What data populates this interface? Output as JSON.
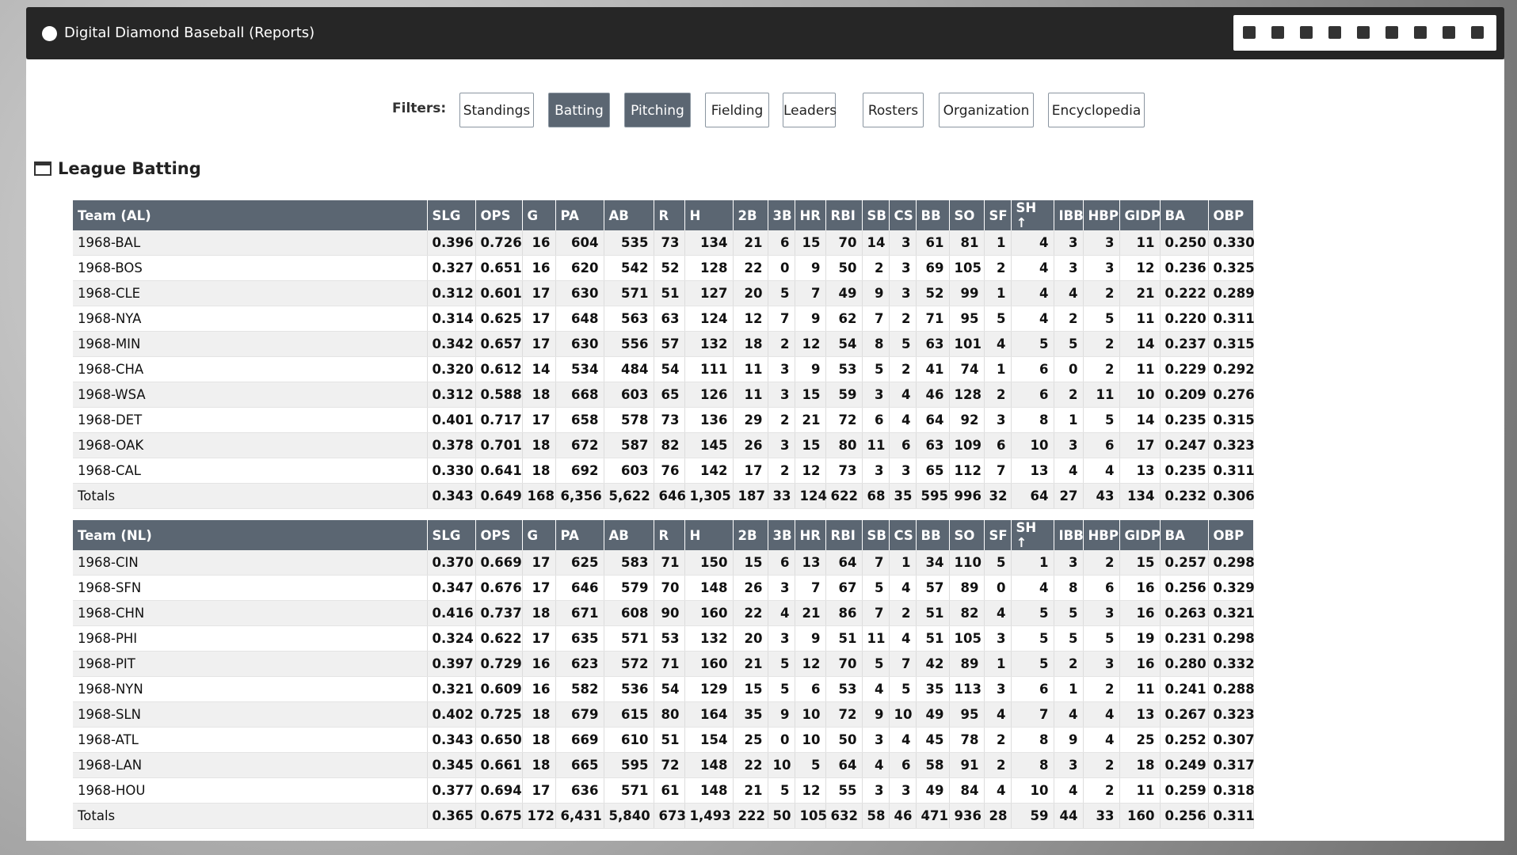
{
  "header": {
    "title": "Digital Diamond Baseball (Reports)"
  },
  "filters": {
    "label": "Filters:",
    "buttons": [
      {
        "label": "Standings",
        "active": false
      },
      {
        "label": "Batting",
        "active": true
      },
      {
        "label": "Pitching",
        "active": true
      },
      {
        "label": "Fielding",
        "active": false
      },
      {
        "label": "Leaders",
        "active": false
      },
      {
        "label": "Rosters",
        "active": false
      },
      {
        "label": "Organization",
        "active": false
      },
      {
        "label": "Encyclopedia",
        "active": false
      }
    ]
  },
  "section": {
    "title": "League Batting"
  },
  "tables": [
    {
      "columns": [
        "Team (AL)",
        "SLG",
        "OPS",
        "G",
        "PA",
        "AB",
        "R",
        "H",
        "2B",
        "3B",
        "HR",
        "RBI",
        "SB",
        "CS",
        "BB",
        "SO",
        "SF",
        "SH ↑",
        "IBB",
        "HBP",
        "GIDP",
        "BA",
        "OBP"
      ],
      "rows": [
        [
          "1968-BAL",
          "0.396",
          "0.726",
          "16",
          "604",
          "535",
          "73",
          "134",
          "21",
          "6",
          "15",
          "70",
          "14",
          "3",
          "61",
          "81",
          "1",
          "4",
          "3",
          "3",
          "11",
          "0.250",
          "0.330"
        ],
        [
          "1968-BOS",
          "0.327",
          "0.651",
          "16",
          "620",
          "542",
          "52",
          "128",
          "22",
          "0",
          "9",
          "50",
          "2",
          "3",
          "69",
          "105",
          "2",
          "4",
          "3",
          "3",
          "12",
          "0.236",
          "0.325"
        ],
        [
          "1968-CLE",
          "0.312",
          "0.601",
          "17",
          "630",
          "571",
          "51",
          "127",
          "20",
          "5",
          "7",
          "49",
          "9",
          "3",
          "52",
          "99",
          "1",
          "4",
          "4",
          "2",
          "21",
          "0.222",
          "0.289"
        ],
        [
          "1968-NYA",
          "0.314",
          "0.625",
          "17",
          "648",
          "563",
          "63",
          "124",
          "12",
          "7",
          "9",
          "62",
          "7",
          "2",
          "71",
          "95",
          "5",
          "4",
          "2",
          "5",
          "11",
          "0.220",
          "0.311"
        ],
        [
          "1968-MIN",
          "0.342",
          "0.657",
          "17",
          "630",
          "556",
          "57",
          "132",
          "18",
          "2",
          "12",
          "54",
          "8",
          "5",
          "63",
          "101",
          "4",
          "5",
          "5",
          "2",
          "14",
          "0.237",
          "0.315"
        ],
        [
          "1968-CHA",
          "0.320",
          "0.612",
          "14",
          "534",
          "484",
          "54",
          "111",
          "11",
          "3",
          "9",
          "53",
          "5",
          "2",
          "41",
          "74",
          "1",
          "6",
          "0",
          "2",
          "11",
          "0.229",
          "0.292"
        ],
        [
          "1968-WSA",
          "0.312",
          "0.588",
          "18",
          "668",
          "603",
          "65",
          "126",
          "11",
          "3",
          "15",
          "59",
          "3",
          "4",
          "46",
          "128",
          "2",
          "6",
          "2",
          "11",
          "10",
          "0.209",
          "0.276"
        ],
        [
          "1968-DET",
          "0.401",
          "0.717",
          "17",
          "658",
          "578",
          "73",
          "136",
          "29",
          "2",
          "21",
          "72",
          "6",
          "4",
          "64",
          "92",
          "3",
          "8",
          "1",
          "5",
          "14",
          "0.235",
          "0.315"
        ],
        [
          "1968-OAK",
          "0.378",
          "0.701",
          "18",
          "672",
          "587",
          "82",
          "145",
          "26",
          "3",
          "15",
          "80",
          "11",
          "6",
          "63",
          "109",
          "6",
          "10",
          "3",
          "6",
          "17",
          "0.247",
          "0.323"
        ],
        [
          "1968-CAL",
          "0.330",
          "0.641",
          "18",
          "692",
          "603",
          "76",
          "142",
          "17",
          "2",
          "12",
          "73",
          "3",
          "3",
          "65",
          "112",
          "7",
          "13",
          "4",
          "4",
          "13",
          "0.235",
          "0.311"
        ],
        [
          "Totals",
          "0.343",
          "0.649",
          "168",
          "6,356",
          "5,622",
          "646",
          "1,305",
          "187",
          "33",
          "124",
          "622",
          "68",
          "35",
          "595",
          "996",
          "32",
          "64",
          "27",
          "43",
          "134",
          "0.232",
          "0.306"
        ]
      ]
    },
    {
      "columns": [
        "Team (NL)",
        "SLG",
        "OPS",
        "G",
        "PA",
        "AB",
        "R",
        "H",
        "2B",
        "3B",
        "HR",
        "RBI",
        "SB",
        "CS",
        "BB",
        "SO",
        "SF",
        "SH ↑",
        "IBB",
        "HBP",
        "GIDP",
        "BA",
        "OBP"
      ],
      "rows": [
        [
          "1968-CIN",
          "0.370",
          "0.669",
          "17",
          "625",
          "583",
          "71",
          "150",
          "15",
          "6",
          "13",
          "64",
          "7",
          "1",
          "34",
          "110",
          "5",
          "1",
          "3",
          "2",
          "15",
          "0.257",
          "0.298"
        ],
        [
          "1968-SFN",
          "0.347",
          "0.676",
          "17",
          "646",
          "579",
          "70",
          "148",
          "26",
          "3",
          "7",
          "67",
          "5",
          "4",
          "57",
          "89",
          "0",
          "4",
          "8",
          "6",
          "16",
          "0.256",
          "0.329"
        ],
        [
          "1968-CHN",
          "0.416",
          "0.737",
          "18",
          "671",
          "608",
          "90",
          "160",
          "22",
          "4",
          "21",
          "86",
          "7",
          "2",
          "51",
          "82",
          "4",
          "5",
          "5",
          "3",
          "16",
          "0.263",
          "0.321"
        ],
        [
          "1968-PHI",
          "0.324",
          "0.622",
          "17",
          "635",
          "571",
          "53",
          "132",
          "20",
          "3",
          "9",
          "51",
          "11",
          "4",
          "51",
          "105",
          "3",
          "5",
          "5",
          "5",
          "19",
          "0.231",
          "0.298"
        ],
        [
          "1968-PIT",
          "0.397",
          "0.729",
          "16",
          "623",
          "572",
          "71",
          "160",
          "21",
          "5",
          "12",
          "70",
          "5",
          "7",
          "42",
          "89",
          "1",
          "5",
          "2",
          "3",
          "16",
          "0.280",
          "0.332"
        ],
        [
          "1968-NYN",
          "0.321",
          "0.609",
          "16",
          "582",
          "536",
          "54",
          "129",
          "15",
          "5",
          "6",
          "53",
          "4",
          "5",
          "35",
          "113",
          "3",
          "6",
          "1",
          "2",
          "11",
          "0.241",
          "0.288"
        ],
        [
          "1968-SLN",
          "0.402",
          "0.725",
          "18",
          "679",
          "615",
          "80",
          "164",
          "35",
          "9",
          "10",
          "72",
          "9",
          "10",
          "49",
          "95",
          "4",
          "7",
          "4",
          "4",
          "13",
          "0.267",
          "0.323"
        ],
        [
          "1968-ATL",
          "0.343",
          "0.650",
          "18",
          "669",
          "610",
          "51",
          "154",
          "25",
          "0",
          "10",
          "50",
          "3",
          "4",
          "45",
          "78",
          "2",
          "8",
          "9",
          "4",
          "25",
          "0.252",
          "0.307"
        ],
        [
          "1968-LAN",
          "0.345",
          "0.661",
          "18",
          "665",
          "595",
          "72",
          "148",
          "22",
          "10",
          "5",
          "64",
          "4",
          "6",
          "58",
          "91",
          "2",
          "8",
          "3",
          "2",
          "18",
          "0.249",
          "0.317"
        ],
        [
          "1968-HOU",
          "0.377",
          "0.694",
          "17",
          "636",
          "571",
          "61",
          "148",
          "21",
          "5",
          "12",
          "55",
          "3",
          "3",
          "49",
          "84",
          "4",
          "10",
          "4",
          "2",
          "11",
          "0.259",
          "0.318"
        ],
        [
          "Totals",
          "0.365",
          "0.675",
          "172",
          "6,431",
          "5,840",
          "673",
          "1,493",
          "222",
          "50",
          "105",
          "632",
          "58",
          "46",
          "471",
          "936",
          "28",
          "59",
          "44",
          "33",
          "160",
          "0.256",
          "0.311"
        ]
      ]
    }
  ]
}
